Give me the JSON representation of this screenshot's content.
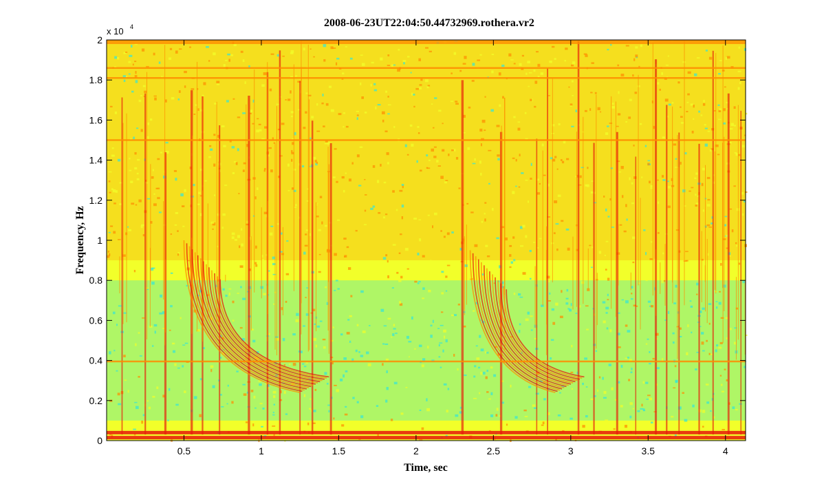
{
  "chart_data": {
    "type": "heatmap",
    "title": "2008-06-23UT22:04:50.44732969.rothera.vr2",
    "xlabel": "Time, sec",
    "ylabel": "Frequency, Hz",
    "x_ticks": [
      "0.5",
      "1",
      "1.5",
      "2",
      "2.5",
      "3",
      "3.5",
      "4"
    ],
    "x_tick_values": [
      0.5,
      1,
      1.5,
      2,
      2.5,
      3,
      3.5,
      4
    ],
    "y_ticks": [
      "0",
      "0.2",
      "0.4",
      "0.6",
      "0.8",
      "1",
      "1.2",
      "1.4",
      "1.6",
      "1.8",
      "2"
    ],
    "y_tick_values": [
      0,
      2000,
      4000,
      6000,
      8000,
      10000,
      12000,
      14000,
      16000,
      18000,
      20000
    ],
    "y_exponent_base": "x 10",
    "y_exponent_power": "4",
    "xlim": [
      0,
      4.13
    ],
    "ylim": [
      0,
      20000
    ],
    "colormap": "jet",
    "colors": {
      "low": "#33e6d8",
      "mid": "#f2ff2a",
      "high": "#ff8c00",
      "peak": "#e81a0a"
    },
    "features": {
      "horizontal_lines_hz": [
        18600,
        18100,
        15000,
        3950,
        400,
        150
      ],
      "whistler_dispersions": [
        {
          "start_time_sec": 0.5,
          "start_freq_hz": 10000,
          "end_time_sec": 1.25,
          "end_freq_hz": 2400
        },
        {
          "start_time_sec": 2.35,
          "start_freq_hz": 9500,
          "end_time_sec": 2.9,
          "end_freq_hz": 2400
        }
      ],
      "impulse_times_sec": [
        0.1,
        0.25,
        0.38,
        0.55,
        0.62,
        0.73,
        0.92,
        1.04,
        1.12,
        1.25,
        1.33,
        1.45,
        2.3,
        2.55,
        2.78,
        2.85,
        3.05,
        3.15,
        3.3,
        3.42,
        3.55,
        3.62,
        3.7,
        3.83,
        3.92,
        4.02,
        4.1
      ]
    }
  }
}
